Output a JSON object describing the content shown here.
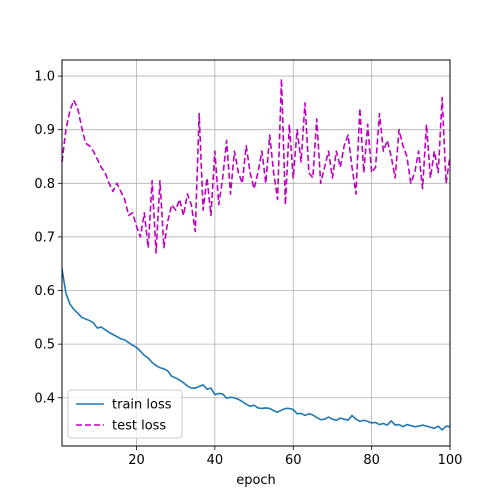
{
  "chart_data": {
    "type": "line",
    "title": "",
    "xlabel": "epoch",
    "ylabel": "",
    "xlim": [
      1,
      100
    ],
    "ylim": [
      0.31,
      1.03
    ],
    "xticks": [
      20,
      40,
      60,
      80,
      100
    ],
    "yticks": [
      0.4,
      0.5,
      0.6,
      0.7,
      0.8,
      0.9,
      1.0
    ],
    "xtick_labels": [
      "20",
      "40",
      "60",
      "80",
      "100"
    ],
    "ytick_labels": [
      "0.4",
      "0.5",
      "0.6",
      "0.7",
      "0.8",
      "0.9",
      "1.0"
    ],
    "grid": true,
    "legend": {
      "position": "lower-left"
    },
    "series": [
      {
        "name": "train loss",
        "color": "#1f77b4",
        "style": "solid",
        "x": [
          1,
          2,
          3,
          4,
          5,
          6,
          7,
          8,
          9,
          10,
          11,
          12,
          13,
          14,
          15,
          16,
          17,
          18,
          19,
          20,
          21,
          22,
          23,
          24,
          25,
          26,
          27,
          28,
          29,
          30,
          31,
          32,
          33,
          34,
          35,
          36,
          37,
          38,
          39,
          40,
          41,
          42,
          43,
          44,
          45,
          46,
          47,
          48,
          49,
          50,
          51,
          52,
          53,
          54,
          55,
          56,
          57,
          58,
          59,
          60,
          61,
          62,
          63,
          64,
          65,
          66,
          67,
          68,
          69,
          70,
          71,
          72,
          73,
          74,
          75,
          76,
          77,
          78,
          79,
          80,
          81,
          82,
          83,
          84,
          85,
          86,
          87,
          88,
          89,
          90,
          91,
          92,
          93,
          94,
          95,
          96,
          97,
          98,
          99,
          100
        ],
        "y": [
          0.64,
          0.595,
          0.575,
          0.565,
          0.558,
          0.55,
          0.547,
          0.544,
          0.54,
          0.53,
          0.532,
          0.527,
          0.522,
          0.518,
          0.514,
          0.51,
          0.508,
          0.503,
          0.498,
          0.494,
          0.487,
          0.479,
          0.474,
          0.466,
          0.46,
          0.456,
          0.454,
          0.45,
          0.44,
          0.437,
          0.433,
          0.428,
          0.422,
          0.418,
          0.418,
          0.421,
          0.424,
          0.416,
          0.418,
          0.406,
          0.408,
          0.407,
          0.399,
          0.401,
          0.4,
          0.397,
          0.393,
          0.388,
          0.384,
          0.386,
          0.381,
          0.38,
          0.381,
          0.38,
          0.376,
          0.373,
          0.377,
          0.38,
          0.38,
          0.378,
          0.37,
          0.371,
          0.367,
          0.37,
          0.368,
          0.363,
          0.359,
          0.36,
          0.364,
          0.36,
          0.358,
          0.362,
          0.36,
          0.358,
          0.367,
          0.36,
          0.356,
          0.358,
          0.356,
          0.353,
          0.354,
          0.35,
          0.352,
          0.349,
          0.357,
          0.349,
          0.35,
          0.346,
          0.35,
          0.348,
          0.346,
          0.347,
          0.349,
          0.347,
          0.345,
          0.343,
          0.347,
          0.34,
          0.347,
          0.346
        ]
      },
      {
        "name": "test loss",
        "color": "#bf00bf",
        "style": "dashed",
        "x": [
          1,
          2,
          3,
          4,
          5,
          6,
          7,
          8,
          9,
          10,
          11,
          12,
          13,
          14,
          15,
          16,
          17,
          18,
          19,
          20,
          21,
          22,
          23,
          24,
          25,
          26,
          27,
          28,
          29,
          30,
          31,
          32,
          33,
          34,
          35,
          36,
          37,
          38,
          39,
          40,
          41,
          42,
          43,
          44,
          45,
          46,
          47,
          48,
          49,
          50,
          51,
          52,
          53,
          54,
          55,
          56,
          57,
          58,
          59,
          60,
          61,
          62,
          63,
          64,
          65,
          66,
          67,
          68,
          69,
          70,
          71,
          72,
          73,
          74,
          75,
          76,
          77,
          78,
          79,
          80,
          81,
          82,
          83,
          84,
          85,
          86,
          87,
          88,
          89,
          90,
          91,
          92,
          93,
          94,
          95,
          96,
          97,
          98,
          99,
          100
        ],
        "y": [
          0.84,
          0.9,
          0.935,
          0.955,
          0.94,
          0.905,
          0.875,
          0.87,
          0.86,
          0.845,
          0.83,
          0.82,
          0.8,
          0.785,
          0.8,
          0.785,
          0.77,
          0.74,
          0.745,
          0.72,
          0.7,
          0.745,
          0.68,
          0.805,
          0.67,
          0.805,
          0.68,
          0.73,
          0.76,
          0.75,
          0.77,
          0.74,
          0.78,
          0.76,
          0.71,
          0.93,
          0.75,
          0.81,
          0.74,
          0.86,
          0.76,
          0.81,
          0.88,
          0.78,
          0.86,
          0.82,
          0.8,
          0.87,
          0.82,
          0.79,
          0.82,
          0.86,
          0.8,
          0.89,
          0.82,
          0.77,
          0.995,
          0.76,
          0.91,
          0.81,
          0.9,
          0.84,
          0.95,
          0.82,
          0.81,
          0.92,
          0.8,
          0.83,
          0.86,
          0.81,
          0.86,
          0.83,
          0.87,
          0.89,
          0.83,
          0.78,
          0.94,
          0.82,
          0.91,
          0.82,
          0.83,
          0.93,
          0.86,
          0.88,
          0.85,
          0.81,
          0.9,
          0.87,
          0.85,
          0.8,
          0.82,
          0.86,
          0.79,
          0.91,
          0.81,
          0.86,
          0.82,
          0.96,
          0.8,
          0.85
        ]
      }
    ]
  }
}
